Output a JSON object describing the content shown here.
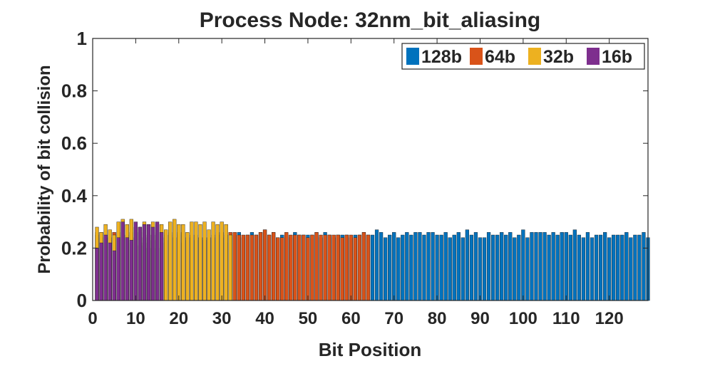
{
  "chart_data": {
    "type": "bar",
    "title": "Process Node: 32nm_bit_aliasing",
    "xlabel": "Bit Position",
    "ylabel": "Probability of bit collision",
    "xlim": [
      0,
      129
    ],
    "ylim": [
      0,
      1
    ],
    "xticks": [
      "0",
      "10",
      "20",
      "30",
      "40",
      "50",
      "60",
      "70",
      "80",
      "90",
      "100",
      "110",
      "120"
    ],
    "yticks": [
      "0",
      "0.2",
      "0.4",
      "0.6",
      "0.8",
      "1"
    ],
    "grid": false,
    "legend_position": "top-right",
    "series": [
      {
        "name": "128b",
        "color": "#0072BD",
        "values": [
          0.26,
          0.24,
          0.24,
          0.23,
          0.25,
          0.26,
          0.24,
          0.24,
          0.22,
          0.24,
          0.21,
          0.22,
          0.2,
          0.23,
          0.2,
          0.22,
          0.23,
          0.25,
          0.24,
          0.26,
          0.22,
          0.23,
          0.24,
          0.25,
          0.24,
          0.24,
          0.24,
          0.25,
          0.26,
          0.24,
          0.25,
          0.24,
          0.25,
          0.26,
          0.24,
          0.25,
          0.26,
          0.25,
          0.26,
          0.27,
          0.25,
          0.26,
          0.24,
          0.25,
          0.25,
          0.24,
          0.26,
          0.25,
          0.25,
          0.25,
          0.25,
          0.26,
          0.24,
          0.26,
          0.25,
          0.24,
          0.25,
          0.25,
          0.25,
          0.24,
          0.25,
          0.25,
          0.26,
          0.25,
          0.25,
          0.27,
          0.26,
          0.24,
          0.25,
          0.26,
          0.24,
          0.25,
          0.26,
          0.25,
          0.26,
          0.26,
          0.25,
          0.26,
          0.26,
          0.25,
          0.25,
          0.26,
          0.24,
          0.25,
          0.26,
          0.24,
          0.27,
          0.25,
          0.26,
          0.24,
          0.24,
          0.26,
          0.25,
          0.25,
          0.26,
          0.25,
          0.26,
          0.24,
          0.25,
          0.27,
          0.24,
          0.26,
          0.26,
          0.26,
          0.26,
          0.25,
          0.26,
          0.25,
          0.26,
          0.26,
          0.25,
          0.27,
          0.25,
          0.24,
          0.26,
          0.24,
          0.25,
          0.25,
          0.26,
          0.24,
          0.25,
          0.25,
          0.25,
          0.26,
          0.24,
          0.25,
          0.25,
          0.26,
          0.24
        ]
      },
      {
        "name": "64b",
        "color": "#D95319",
        "values": [
          0.25,
          0.26,
          0.25,
          0.24,
          0.26,
          0.25,
          0.22,
          0.25,
          0.26,
          0.24,
          0.26,
          0.24,
          0.25,
          0.25,
          0.26,
          0.24,
          0.25,
          0.26,
          0.24,
          0.25,
          0.26,
          0.24,
          0.25,
          0.23,
          0.24,
          0.23,
          0.24,
          0.24,
          0.25,
          0.26,
          0.22,
          0.26,
          0.26,
          0.25,
          0.25,
          0.25,
          0.25,
          0.25,
          0.26,
          0.27,
          0.25,
          0.26,
          0.24,
          0.24,
          0.26,
          0.25,
          0.25,
          0.25,
          0.25,
          0.24,
          0.25,
          0.26,
          0.25,
          0.25,
          0.25,
          0.25,
          0.25,
          0.24,
          0.25,
          0.25,
          0.24,
          0.25,
          0.26,
          0.25
        ]
      },
      {
        "name": "32b",
        "color": "#EDB120",
        "values": [
          0.28,
          0.26,
          0.29,
          0.27,
          0.25,
          0.3,
          0.31,
          0.29,
          0.31,
          0.28,
          0.28,
          0.3,
          0.29,
          0.3,
          0.29,
          0.29,
          0.27,
          0.3,
          0.31,
          0.29,
          0.29,
          0.26,
          0.3,
          0.3,
          0.29,
          0.3,
          0.27,
          0.3,
          0.29,
          0.3,
          0.29,
          0.25
        ]
      },
      {
        "name": "16b",
        "color": "#7E2F8E",
        "values": [
          0.2,
          0.22,
          0.25,
          0.22,
          0.19,
          0.24,
          0.3,
          0.24,
          0.23,
          0.3,
          0.28,
          0.29,
          0.29,
          0.28,
          0.3,
          0.26
        ]
      }
    ]
  }
}
